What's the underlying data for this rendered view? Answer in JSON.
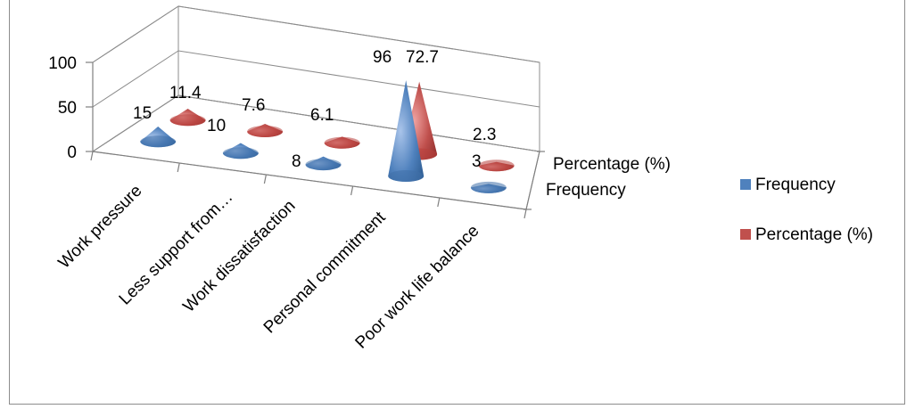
{
  "chart_data": {
    "type": "bar",
    "style": "3d-cone",
    "categories": [
      "Work pressure",
      "Less support from…",
      "Work dissatisfaction",
      "Personal commitment",
      "Poor work life balance"
    ],
    "series": [
      {
        "name": "Frequency",
        "values": [
          15,
          10,
          8,
          96,
          3
        ],
        "labels": [
          "15",
          "10",
          "8",
          "96",
          "3"
        ],
        "color": "#4f81bd"
      },
      {
        "name": "Percentage (%)",
        "values": [
          11.4,
          7.6,
          6.1,
          72.7,
          2.3
        ],
        "labels": [
          "11.4",
          "7.6",
          "6.1",
          "72.7",
          "2.3"
        ],
        "color": "#c0504d"
      }
    ],
    "ylim": [
      0,
      100
    ],
    "y_ticks": [
      "0",
      "50",
      "100"
    ],
    "depth_labels": [
      "Percentage (%)",
      "Frequency"
    ],
    "legend": {
      "position": "right",
      "entries": [
        "Frequency",
        "Percentage (%)"
      ]
    },
    "grid": true
  }
}
